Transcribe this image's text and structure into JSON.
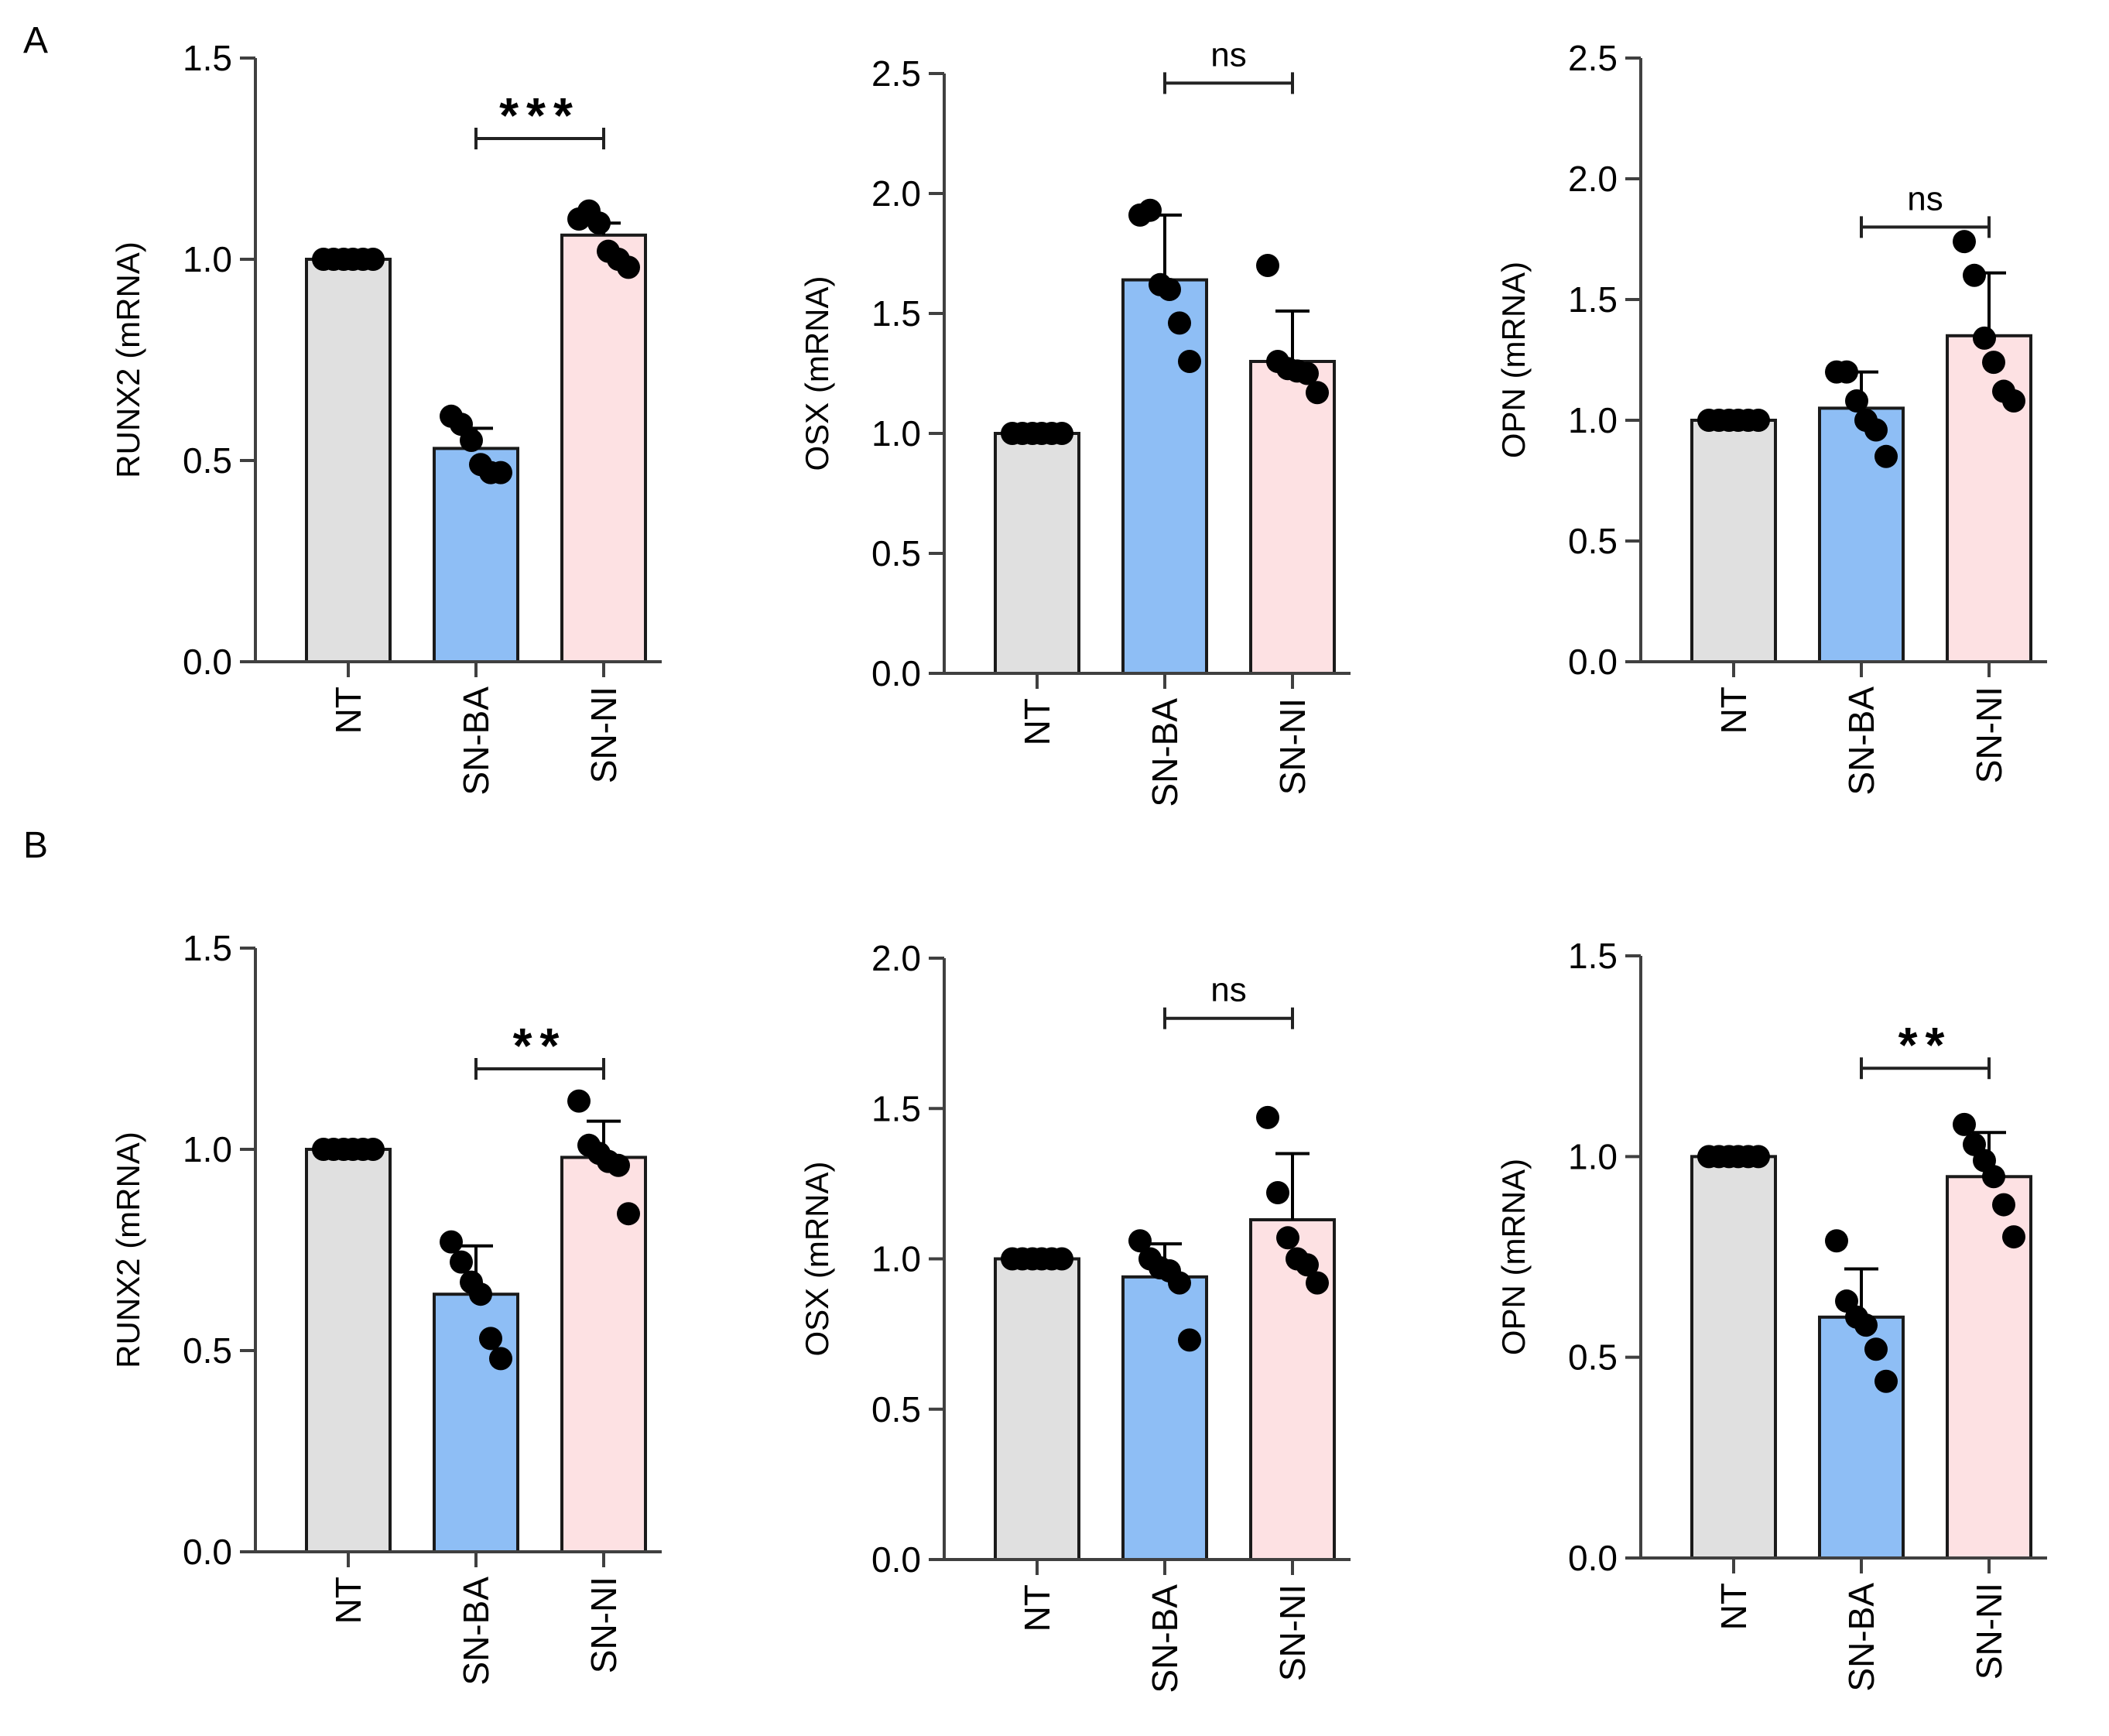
{
  "panel_labels": [
    "A",
    "B"
  ],
  "colors": {
    "NT": "#e0e0e0",
    "SN-BA": "#8ebef5",
    "SN-NI": "#fde1e3",
    "axis": "#404040",
    "points": "#000000"
  },
  "chart_data": [
    {
      "panel": "A",
      "type": "bar",
      "title": "",
      "ylabel": "RUNX2 (mRNA)",
      "ylim": [
        0,
        1.5
      ],
      "yticks": [
        "0.0",
        "0.5",
        "1.0",
        "1.5"
      ],
      "categories": [
        "NT",
        "SN-BA",
        "SN-NI"
      ],
      "values": [
        1.0,
        0.53,
        1.06
      ],
      "errors": [
        0,
        0.05,
        0.03
      ],
      "points": [
        [
          1,
          1,
          1,
          1,
          1,
          1
        ],
        [
          0.61,
          0.59,
          0.55,
          0.49,
          0.47,
          0.47
        ],
        [
          1.1,
          1.12,
          1.09,
          1.02,
          1.0,
          0.98
        ]
      ],
      "significance": {
        "pair": [
          1,
          2
        ],
        "label": "***",
        "at": 1.3
      }
    },
    {
      "panel": "A",
      "type": "bar",
      "title": "",
      "ylabel": "OSX (mRNA)",
      "ylim": [
        0,
        2.5
      ],
      "yticks": [
        "0.0",
        "0.5",
        "1.0",
        "1.5",
        "2.0",
        "2.5"
      ],
      "categories": [
        "NT",
        "SN-BA",
        "SN-NI"
      ],
      "values": [
        1.0,
        1.64,
        1.3
      ],
      "errors": [
        0,
        0.27,
        0.21
      ],
      "points": [
        [
          1,
          1,
          1,
          1,
          1,
          1
        ],
        [
          1.91,
          1.93,
          1.62,
          1.6,
          1.46,
          1.3
        ],
        [
          1.7,
          1.3,
          1.27,
          1.26,
          1.25,
          1.17
        ]
      ],
      "significance": {
        "pair": [
          1,
          2
        ],
        "label": "ns",
        "at": 2.46
      }
    },
    {
      "panel": "A",
      "type": "bar",
      "title": "",
      "ylabel": "OPN (mRNA)",
      "ylim": [
        0,
        2.5
      ],
      "yticks": [
        "0.0",
        "0.5",
        "1.0",
        "1.5",
        "2.0",
        "2.5"
      ],
      "categories": [
        "NT",
        "SN-BA",
        "SN-NI"
      ],
      "values": [
        1.0,
        1.05,
        1.35
      ],
      "errors": [
        0,
        0.15,
        0.26
      ],
      "points": [
        [
          1,
          1,
          1,
          1,
          1,
          1
        ],
        [
          1.2,
          1.2,
          1.08,
          1.0,
          0.96,
          0.85
        ],
        [
          1.74,
          1.6,
          1.34,
          1.24,
          1.12,
          1.08
        ]
      ],
      "significance": {
        "pair": [
          1,
          2
        ],
        "label": "ns",
        "at": 1.8
      }
    },
    {
      "panel": "B",
      "type": "bar",
      "title": "",
      "ylabel": "RUNX2 (mRNA)",
      "ylim": [
        0,
        1.5
      ],
      "yticks": [
        "0.0",
        "0.5",
        "1.0",
        "1.5"
      ],
      "categories": [
        "NT",
        "SN-BA",
        "SN-NI"
      ],
      "values": [
        1.0,
        0.64,
        0.98
      ],
      "errors": [
        0,
        0.12,
        0.09
      ],
      "points": [
        [
          1,
          1,
          1,
          1,
          1,
          1
        ],
        [
          0.77,
          0.72,
          0.67,
          0.64,
          0.53,
          0.48
        ],
        [
          1.12,
          1.01,
          0.99,
          0.97,
          0.96,
          0.84
        ]
      ],
      "significance": {
        "pair": [
          1,
          2
        ],
        "label": "**",
        "at": 1.2
      }
    },
    {
      "panel": "B",
      "type": "bar",
      "title": "",
      "ylabel": "OSX (mRNA)",
      "ylim": [
        0,
        2.0
      ],
      "yticks": [
        "0.0",
        "0.5",
        "1.0",
        "1.5",
        "2.0"
      ],
      "categories": [
        "NT",
        "SN-BA",
        "SN-NI"
      ],
      "values": [
        1.0,
        0.94,
        1.13
      ],
      "errors": [
        0,
        0.11,
        0.22
      ],
      "points": [
        [
          1,
          1,
          1,
          1,
          1,
          1
        ],
        [
          1.06,
          1.0,
          0.97,
          0.96,
          0.92,
          0.73
        ],
        [
          1.47,
          1.22,
          1.07,
          1.0,
          0.98,
          0.92
        ]
      ],
      "significance": {
        "pair": [
          1,
          2
        ],
        "label": "ns",
        "at": 1.8
      }
    },
    {
      "panel": "B",
      "type": "bar",
      "title": "",
      "ylabel": "OPN  (mRNA)",
      "ylim": [
        0,
        1.5
      ],
      "yticks": [
        "0.0",
        "0.5",
        "1.0",
        "1.5"
      ],
      "categories": [
        "NT",
        "SN-BA",
        "SN-NI"
      ],
      "values": [
        1.0,
        0.6,
        0.95
      ],
      "errors": [
        0,
        0.12,
        0.11
      ],
      "points": [
        [
          1,
          1,
          1,
          1,
          1,
          1
        ],
        [
          0.79,
          0.64,
          0.6,
          0.58,
          0.52,
          0.44
        ],
        [
          1.08,
          1.03,
          0.99,
          0.95,
          0.88,
          0.8
        ]
      ],
      "significance": {
        "pair": [
          1,
          2
        ],
        "label": "**",
        "at": 1.22
      }
    }
  ]
}
